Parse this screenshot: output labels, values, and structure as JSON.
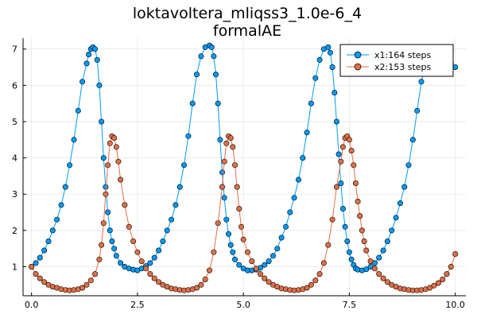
{
  "chart_data": {
    "type": "line",
    "title": "loktavoltera_mliqss3_1.0e-6_4",
    "subtitle": "formalAE",
    "xlabel": "",
    "ylabel": "",
    "xlim": [
      -0.2,
      10.25
    ],
    "ylim": [
      0.2,
      7.3
    ],
    "xticks": [
      0.0,
      2.5,
      5.0,
      7.5,
      10.0
    ],
    "xtick_labels": [
      "0.0",
      "2.5",
      "5.0",
      "7.5",
      "10.0"
    ],
    "yticks": [
      1,
      2,
      3,
      4,
      5,
      6,
      7
    ],
    "ytick_labels": [
      "1",
      "2",
      "3",
      "4",
      "5",
      "6",
      "7"
    ],
    "grid": true,
    "legend_position": "top-right",
    "series": [
      {
        "name": "x1:164 steps",
        "color": "#009af9",
        "x": [
          0.0,
          0.1,
          0.2,
          0.3,
          0.4,
          0.5,
          0.6,
          0.7,
          0.8,
          0.9,
          1.0,
          1.1,
          1.2,
          1.3,
          1.35,
          1.4,
          1.45,
          1.5,
          1.55,
          1.6,
          1.65,
          1.7,
          1.75,
          1.8,
          1.85,
          1.9,
          1.95,
          2.0,
          2.1,
          2.2,
          2.3,
          2.4,
          2.5,
          2.6,
          2.7,
          2.8,
          2.9,
          3.0,
          3.1,
          3.2,
          3.3,
          3.4,
          3.5,
          3.6,
          3.7,
          3.8,
          3.9,
          4.0,
          4.1,
          4.2,
          4.25,
          4.3,
          4.35,
          4.4,
          4.45,
          4.5,
          4.55,
          4.6,
          4.65,
          4.7,
          4.75,
          4.8,
          4.9,
          5.0,
          5.1,
          5.2,
          5.3,
          5.4,
          5.5,
          5.6,
          5.7,
          5.8,
          5.9,
          6.0,
          6.1,
          6.2,
          6.3,
          6.4,
          6.5,
          6.6,
          6.7,
          6.8,
          6.9,
          7.0,
          7.05,
          7.1,
          7.15,
          7.2,
          7.25,
          7.3,
          7.35,
          7.4,
          7.45,
          7.5,
          7.55,
          7.6,
          7.65,
          7.7,
          7.8,
          7.9,
          8.0,
          8.1,
          8.2,
          8.3,
          8.4,
          8.5,
          8.6,
          8.7,
          8.8,
          8.9,
          9.0,
          9.1,
          9.2,
          9.3,
          9.4,
          9.5,
          9.6,
          9.7,
          9.8,
          9.9,
          10.0
        ],
        "y": [
          1.0,
          1.1,
          1.25,
          1.45,
          1.7,
          2.0,
          2.3,
          2.7,
          3.2,
          3.8,
          4.5,
          5.3,
          6.1,
          6.6,
          6.85,
          7.0,
          7.05,
          7.0,
          6.7,
          6.0,
          5.0,
          4.0,
          3.2,
          2.5,
          2.0,
          1.7,
          1.5,
          1.3,
          1.1,
          1.0,
          0.95,
          0.92,
          0.9,
          0.95,
          1.02,
          1.1,
          1.25,
          1.45,
          1.7,
          2.0,
          2.3,
          2.7,
          3.2,
          3.8,
          4.6,
          5.5,
          6.3,
          6.8,
          7.05,
          7.1,
          7.05,
          6.8,
          6.3,
          5.5,
          4.5,
          3.6,
          2.9,
          2.3,
          1.9,
          1.6,
          1.4,
          1.2,
          1.05,
          0.95,
          0.9,
          0.9,
          0.92,
          0.97,
          1.05,
          1.15,
          1.3,
          1.5,
          1.8,
          2.1,
          2.5,
          2.9,
          3.4,
          4.0,
          4.7,
          5.5,
          6.2,
          6.7,
          7.0,
          7.05,
          6.9,
          6.5,
          5.8,
          5.0,
          4.1,
          3.3,
          2.6,
          2.1,
          1.7,
          1.4,
          1.2,
          1.05,
          0.95,
          0.92,
          0.9,
          0.93,
          1.0,
          1.1,
          1.25,
          1.45,
          1.7,
          2.0,
          2.35,
          2.75,
          3.2,
          3.8,
          4.5,
          5.3,
          6.1,
          6.6,
          6.85,
          6.95,
          7.0,
          6.95,
          6.8,
          6.6,
          6.5
        ]
      },
      {
        "name": "x2:153 steps",
        "color": "#e26f46",
        "x": [
          0.0,
          0.1,
          0.2,
          0.3,
          0.4,
          0.5,
          0.6,
          0.7,
          0.8,
          0.9,
          1.0,
          1.1,
          1.2,
          1.3,
          1.4,
          1.5,
          1.6,
          1.65,
          1.7,
          1.75,
          1.8,
          1.85,
          1.9,
          1.95,
          2.0,
          2.05,
          2.1,
          2.2,
          2.3,
          2.4,
          2.5,
          2.6,
          2.7,
          2.8,
          2.9,
          3.0,
          3.1,
          3.2,
          3.3,
          3.4,
          3.5,
          3.6,
          3.7,
          3.8,
          3.9,
          4.0,
          4.1,
          4.2,
          4.3,
          4.4,
          4.5,
          4.55,
          4.6,
          4.65,
          4.7,
          4.75,
          4.8,
          4.85,
          4.9,
          4.95,
          5.0,
          5.1,
          5.2,
          5.3,
          5.4,
          5.5,
          5.6,
          5.7,
          5.8,
          5.9,
          6.0,
          6.1,
          6.2,
          6.3,
          6.4,
          6.5,
          6.6,
          6.7,
          6.8,
          6.9,
          7.0,
          7.1,
          7.2,
          7.3,
          7.35,
          7.4,
          7.45,
          7.5,
          7.55,
          7.6,
          7.65,
          7.7,
          7.75,
          7.8,
          7.85,
          7.9,
          8.0,
          8.1,
          8.2,
          8.3,
          8.4,
          8.5,
          8.6,
          8.7,
          8.8,
          8.9,
          9.0,
          9.1,
          9.2,
          9.3,
          9.4,
          9.5,
          9.6,
          9.7,
          9.8,
          9.9,
          10.0
        ],
        "y": [
          1.0,
          0.8,
          0.68,
          0.58,
          0.5,
          0.45,
          0.42,
          0.38,
          0.36,
          0.35,
          0.36,
          0.38,
          0.42,
          0.5,
          0.62,
          0.8,
          1.2,
          1.6,
          2.2,
          3.0,
          3.8,
          4.4,
          4.6,
          4.55,
          4.3,
          3.9,
          3.4,
          2.7,
          2.1,
          1.7,
          1.4,
          1.15,
          0.95,
          0.8,
          0.68,
          0.58,
          0.5,
          0.45,
          0.4,
          0.38,
          0.36,
          0.35,
          0.36,
          0.38,
          0.42,
          0.5,
          0.65,
          0.9,
          1.4,
          2.2,
          3.2,
          3.9,
          4.4,
          4.6,
          4.55,
          4.3,
          3.8,
          3.2,
          2.6,
          2.1,
          1.75,
          1.4,
          1.15,
          0.95,
          0.8,
          0.68,
          0.58,
          0.5,
          0.45,
          0.4,
          0.38,
          0.36,
          0.35,
          0.36,
          0.38,
          0.42,
          0.5,
          0.62,
          0.8,
          1.1,
          1.6,
          2.3,
          3.2,
          3.9,
          4.3,
          4.55,
          4.6,
          4.5,
          4.2,
          3.8,
          3.3,
          2.8,
          2.4,
          2.0,
          1.7,
          1.45,
          1.15,
          0.95,
          0.8,
          0.68,
          0.58,
          0.5,
          0.45,
          0.4,
          0.38,
          0.36,
          0.35,
          0.35,
          0.36,
          0.38,
          0.42,
          0.48,
          0.55,
          0.65,
          0.8,
          1.0,
          1.35
        ]
      }
    ]
  }
}
